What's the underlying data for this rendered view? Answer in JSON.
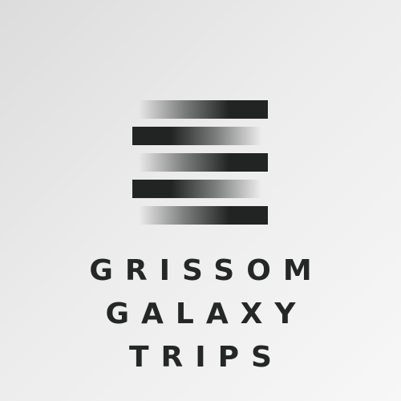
{
  "logo": {
    "title_lines": [
      "GRISSOM",
      "GALAXY",
      "TRIPS"
    ],
    "text_color": "#252727",
    "bar_color": "#222424",
    "background_colors": [
      "#dcdcdc",
      "#f7f7f7"
    ]
  }
}
